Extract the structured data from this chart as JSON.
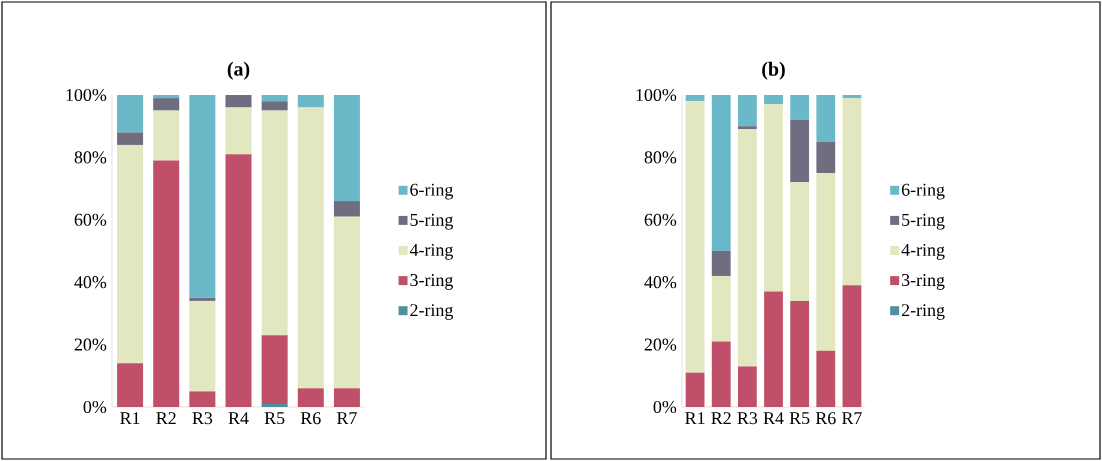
{
  "chart_data": [
    {
      "type": "bar",
      "stacked": true,
      "title": "(a)",
      "categories": [
        "R1",
        "R2",
        "R3",
        "R4",
        "R5",
        "R6",
        "R7"
      ],
      "ylim": [
        0,
        100
      ],
      "yticks": [
        {
          "value": 0,
          "label": "0%"
        },
        {
          "value": 20,
          "label": "20%"
        },
        {
          "value": 40,
          "label": "40%"
        },
        {
          "value": 60,
          "label": "60%"
        },
        {
          "value": 80,
          "label": "80%"
        },
        {
          "value": 100,
          "label": "100%"
        }
      ],
      "legend": "right",
      "series": [
        {
          "name": "2-ring",
          "color": "#4f8f9e",
          "values": [
            0,
            0,
            0,
            0,
            1,
            0,
            0
          ]
        },
        {
          "name": "3-ring",
          "color": "#c0506a",
          "values": [
            14,
            79,
            5,
            81,
            22,
            6,
            6
          ]
        },
        {
          "name": "4-ring",
          "color": "#e2e7c0",
          "values": [
            70,
            16,
            29,
            15,
            72,
            90,
            55
          ]
        },
        {
          "name": "5-ring",
          "color": "#6e6e80",
          "values": [
            4,
            4,
            1,
            4,
            3,
            0,
            5
          ]
        },
        {
          "name": "6-ring",
          "color": "#6ab8c8",
          "values": [
            12,
            1,
            65,
            0,
            2,
            4,
            34
          ]
        }
      ]
    },
    {
      "type": "bar",
      "stacked": true,
      "title": "(b)",
      "categories": [
        "R1",
        "R2",
        "R3",
        "R4",
        "R5",
        "R6",
        "R7"
      ],
      "ylim": [
        0,
        100
      ],
      "yticks": [
        {
          "value": 0,
          "label": "0%"
        },
        {
          "value": 20,
          "label": "20%"
        },
        {
          "value": 40,
          "label": "40%"
        },
        {
          "value": 60,
          "label": "60%"
        },
        {
          "value": 80,
          "label": "80%"
        },
        {
          "value": 100,
          "label": "100%"
        }
      ],
      "legend": "right",
      "series": [
        {
          "name": "2-ring",
          "color": "#4f8f9e",
          "values": [
            0,
            0,
            0,
            0,
            0,
            0,
            0
          ]
        },
        {
          "name": "3-ring",
          "color": "#c0506a",
          "values": [
            11,
            21,
            13,
            37,
            34,
            18,
            39
          ]
        },
        {
          "name": "4-ring",
          "color": "#e2e7c0",
          "values": [
            87,
            21,
            76,
            60,
            38,
            57,
            60
          ]
        },
        {
          "name": "5-ring",
          "color": "#6e6e80",
          "values": [
            0,
            8,
            1,
            0,
            20,
            10,
            0
          ]
        },
        {
          "name": "6-ring",
          "color": "#6ab8c8",
          "values": [
            2,
            50,
            10,
            3,
            8,
            15,
            1
          ]
        }
      ]
    }
  ]
}
